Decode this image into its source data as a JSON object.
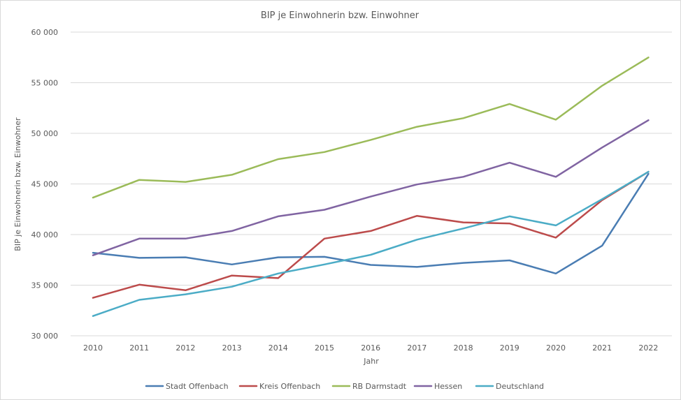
{
  "chart_data": {
    "type": "line",
    "title": "BIP je Einwohnerin bzw. Einwohner",
    "xlabel": "Jahr",
    "ylabel": "BIP je Einwohnerin bzw.  Einwohner",
    "categories": [
      "2010",
      "2011",
      "2012",
      "2013",
      "2014",
      "2015",
      "2016",
      "2017",
      "2018",
      "2019",
      "2020",
      "2021",
      "2022"
    ],
    "ylim": [
      30000,
      60000
    ],
    "yticks": [
      30000,
      35000,
      40000,
      45000,
      50000,
      55000,
      60000
    ],
    "ytick_labels": [
      "30 000",
      "35 000",
      "40 000",
      "45 000",
      "50 000",
      "55 000",
      "60 000"
    ],
    "grid": true,
    "legend_position": "bottom",
    "series": [
      {
        "name": "Stadt Offenbach",
        "color": "#4a7db3",
        "values": [
          38200,
          37700,
          37750,
          37050,
          37750,
          37800,
          37000,
          36800,
          37200,
          37450,
          36150,
          38900,
          46000
        ]
      },
      {
        "name": "Kreis Offenbach",
        "color": "#bc4b4b",
        "values": [
          33750,
          35050,
          34500,
          35950,
          35700,
          39600,
          40350,
          41850,
          41200,
          41100,
          39700,
          43400,
          46200
        ]
      },
      {
        "name": "RB Darmstadt",
        "color": "#9bbb59",
        "values": [
          43650,
          45400,
          45200,
          45900,
          47450,
          48150,
          49350,
          50650,
          51500,
          52900,
          51350,
          54700,
          57500
        ]
      },
      {
        "name": "Hessen",
        "color": "#8064a2",
        "values": [
          37950,
          39600,
          39600,
          40350,
          41800,
          42450,
          43750,
          44950,
          45700,
          47100,
          45700,
          48600,
          51300
        ]
      },
      {
        "name": "Deutschland",
        "color": "#4bacc6",
        "values": [
          31950,
          33550,
          34100,
          34850,
          36150,
          37050,
          38000,
          39500,
          40600,
          41800,
          40900,
          43500,
          46200
        ]
      }
    ]
  }
}
